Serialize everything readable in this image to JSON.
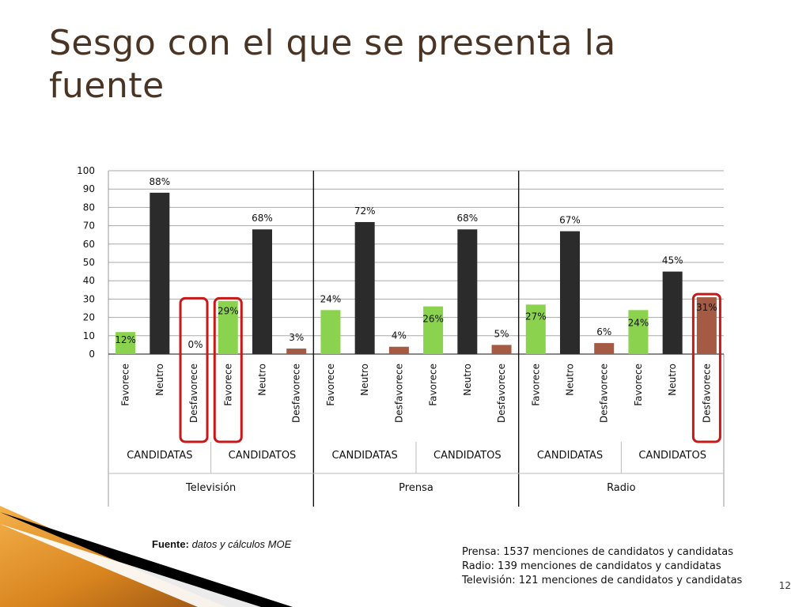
{
  "page": {
    "title": "Sesgo con el que se presenta la fuente",
    "source_label": "Fuente:",
    "source_text": " datos y cálculos  MOE",
    "notes": [
      "Prensa: 1537 menciones de candidatos y candidatas",
      "Radio: 139  menciones de candidatos y candidatas",
      "Televisión: 121 menciones de candidatos y candidatas"
    ],
    "slide_number": "12"
  },
  "chart_data": {
    "type": "bar",
    "title": "",
    "xlabel": "",
    "ylabel": "",
    "ylim": [
      0,
      100
    ],
    "yticks": [
      0,
      10,
      20,
      30,
      40,
      50,
      60,
      70,
      80,
      90,
      100
    ],
    "grid": true,
    "categories": [
      "Favorece",
      "Neutro",
      "Desfavorece",
      "Favorece",
      "Neutro",
      "Desfavorece",
      "Favorece",
      "Neutro",
      "Desfavorece",
      "Favorece",
      "Neutro",
      "Desfavorece",
      "Favorece",
      "Neutro",
      "Desfavorece",
      "Favorece",
      "Neutro",
      "Desfavorece"
    ],
    "values": [
      12,
      88,
      0,
      29,
      68,
      3,
      24,
      72,
      4,
      26,
      68,
      5,
      27,
      67,
      6,
      24,
      45,
      31
    ],
    "data_labels": [
      "12%",
      "88%",
      "0%",
      "29%",
      "68%",
      "3%",
      "24%",
      "72%",
      "4%",
      "26%",
      "68%",
      "5%",
      "27%",
      "67%",
      "6%",
      "24%",
      "45%",
      "31%"
    ],
    "groups": [
      "CANDIDATAS",
      "CANDIDATOS",
      "CANDIDATAS",
      "CANDIDATOS",
      "CANDIDATAS",
      "CANDIDATOS"
    ],
    "media": [
      "Televisión",
      "Prensa",
      "Radio"
    ],
    "colors": {
      "Favorece": "#8bd34f",
      "Neutro": "#2b2b2b",
      "Desfavorece": "#a55a44",
      "highlight": "#c91818",
      "grid": "#a9a9a9",
      "axis": "#111111"
    },
    "highlighted_indices": [
      2,
      3,
      17
    ]
  }
}
